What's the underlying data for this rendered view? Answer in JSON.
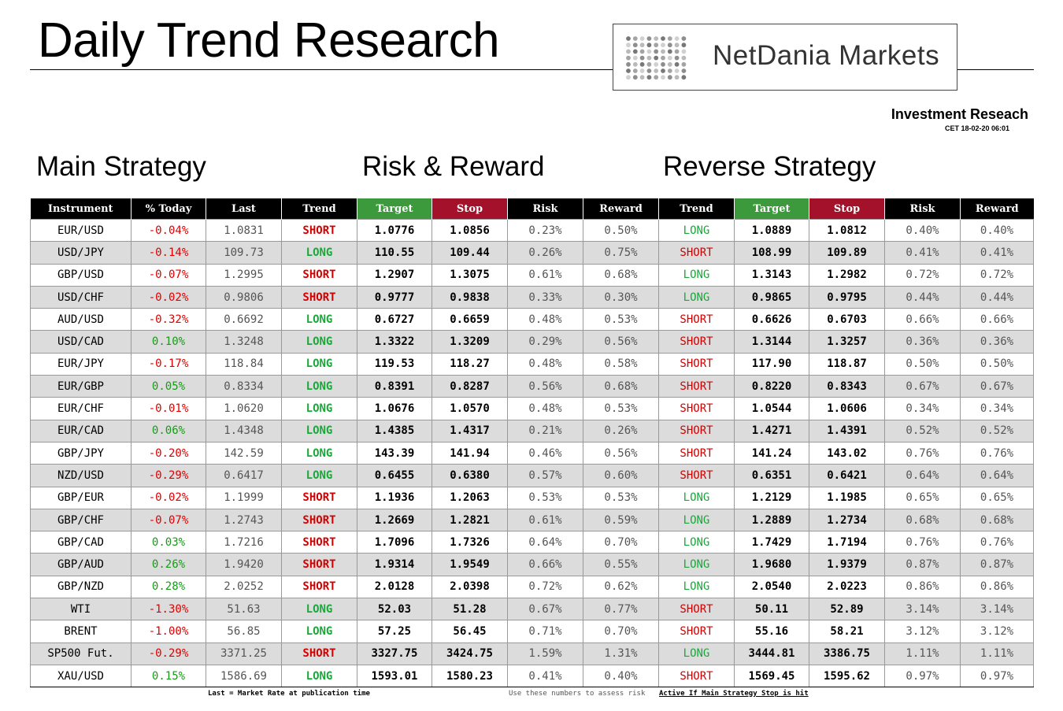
{
  "header": {
    "title": "Daily Trend Research",
    "logo_text": "NetDania Markets",
    "subtitle": "Investment Reseach",
    "timestamp": "CET  18-02-20 06:01"
  },
  "sections": {
    "main": "Main Strategy",
    "risk": "Risk & Reward",
    "reverse": "Reverse Strategy"
  },
  "columns": [
    "Instrument",
    "% Today",
    "Last",
    "Trend",
    "Target",
    "Stop",
    "Risk",
    "Reward",
    "Trend",
    "Target",
    "Stop",
    "Risk",
    "Reward"
  ],
  "colors": {
    "header_bg": "#000000",
    "target_bg": "#3c9a3c",
    "stop_bg": "#a3122a",
    "long": "#1aa83a",
    "short": "#d40000",
    "alt_row": "#dcdcdc"
  },
  "rows": [
    [
      "EUR/USD",
      "-0.04%",
      "1.0831",
      "SHORT",
      "1.0776",
      "1.0856",
      "0.23%",
      "0.50%",
      "LONG",
      "1.0889",
      "1.0812",
      "0.40%",
      "0.40%"
    ],
    [
      "USD/JPY",
      "-0.14%",
      "109.73",
      "LONG",
      "110.55",
      "109.44",
      "0.26%",
      "0.75%",
      "SHORT",
      "108.99",
      "109.89",
      "0.41%",
      "0.41%"
    ],
    [
      "GBP/USD",
      "-0.07%",
      "1.2995",
      "SHORT",
      "1.2907",
      "1.3075",
      "0.61%",
      "0.68%",
      "LONG",
      "1.3143",
      "1.2982",
      "0.72%",
      "0.72%"
    ],
    [
      "USD/CHF",
      "-0.02%",
      "0.9806",
      "SHORT",
      "0.9777",
      "0.9838",
      "0.33%",
      "0.30%",
      "LONG",
      "0.9865",
      "0.9795",
      "0.44%",
      "0.44%"
    ],
    [
      "AUD/USD",
      "-0.32%",
      "0.6692",
      "LONG",
      "0.6727",
      "0.6659",
      "0.48%",
      "0.53%",
      "SHORT",
      "0.6626",
      "0.6703",
      "0.66%",
      "0.66%"
    ],
    [
      "USD/CAD",
      "0.10%",
      "1.3248",
      "LONG",
      "1.3322",
      "1.3209",
      "0.29%",
      "0.56%",
      "SHORT",
      "1.3144",
      "1.3257",
      "0.36%",
      "0.36%"
    ],
    [
      "EUR/JPY",
      "-0.17%",
      "118.84",
      "LONG",
      "119.53",
      "118.27",
      "0.48%",
      "0.58%",
      "SHORT",
      "117.90",
      "118.87",
      "0.50%",
      "0.50%"
    ],
    [
      "EUR/GBP",
      "0.05%",
      "0.8334",
      "LONG",
      "0.8391",
      "0.8287",
      "0.56%",
      "0.68%",
      "SHORT",
      "0.8220",
      "0.8343",
      "0.67%",
      "0.67%"
    ],
    [
      "EUR/CHF",
      "-0.01%",
      "1.0620",
      "LONG",
      "1.0676",
      "1.0570",
      "0.48%",
      "0.53%",
      "SHORT",
      "1.0544",
      "1.0606",
      "0.34%",
      "0.34%"
    ],
    [
      "EUR/CAD",
      "0.06%",
      "1.4348",
      "LONG",
      "1.4385",
      "1.4317",
      "0.21%",
      "0.26%",
      "SHORT",
      "1.4271",
      "1.4391",
      "0.52%",
      "0.52%"
    ],
    [
      "GBP/JPY",
      "-0.20%",
      "142.59",
      "LONG",
      "143.39",
      "141.94",
      "0.46%",
      "0.56%",
      "SHORT",
      "141.24",
      "143.02",
      "0.76%",
      "0.76%"
    ],
    [
      "NZD/USD",
      "-0.29%",
      "0.6417",
      "LONG",
      "0.6455",
      "0.6380",
      "0.57%",
      "0.60%",
      "SHORT",
      "0.6351",
      "0.6421",
      "0.64%",
      "0.64%"
    ],
    [
      "GBP/EUR",
      "-0.02%",
      "1.1999",
      "SHORT",
      "1.1936",
      "1.2063",
      "0.53%",
      "0.53%",
      "LONG",
      "1.2129",
      "1.1985",
      "0.65%",
      "0.65%"
    ],
    [
      "GBP/CHF",
      "-0.07%",
      "1.2743",
      "SHORT",
      "1.2669",
      "1.2821",
      "0.61%",
      "0.59%",
      "LONG",
      "1.2889",
      "1.2734",
      "0.68%",
      "0.68%"
    ],
    [
      "GBP/CAD",
      "0.03%",
      "1.7216",
      "SHORT",
      "1.7096",
      "1.7326",
      "0.64%",
      "0.70%",
      "LONG",
      "1.7429",
      "1.7194",
      "0.76%",
      "0.76%"
    ],
    [
      "GBP/AUD",
      "0.26%",
      "1.9420",
      "SHORT",
      "1.9314",
      "1.9549",
      "0.66%",
      "0.55%",
      "LONG",
      "1.9680",
      "1.9379",
      "0.87%",
      "0.87%"
    ],
    [
      "GBP/NZD",
      "0.28%",
      "2.0252",
      "SHORT",
      "2.0128",
      "2.0398",
      "0.72%",
      "0.62%",
      "LONG",
      "2.0540",
      "2.0223",
      "0.86%",
      "0.86%"
    ],
    [
      "WTI",
      "-1.30%",
      "51.63",
      "LONG",
      "52.03",
      "51.28",
      "0.67%",
      "0.77%",
      "SHORT",
      "50.11",
      "52.89",
      "3.14%",
      "3.14%"
    ],
    [
      "BRENT",
      "-1.00%",
      "56.85",
      "LONG",
      "57.25",
      "56.45",
      "0.71%",
      "0.70%",
      "SHORT",
      "55.16",
      "58.21",
      "3.12%",
      "3.12%"
    ],
    [
      "SP500 Fut.",
      "-0.29%",
      "3371.25",
      "SHORT",
      "3327.75",
      "3424.75",
      "1.59%",
      "1.31%",
      "LONG",
      "3444.81",
      "3386.75",
      "1.11%",
      "1.11%"
    ],
    [
      "XAU/USD",
      "0.15%",
      "1586.69",
      "LONG",
      "1593.01",
      "1580.23",
      "0.41%",
      "0.40%",
      "SHORT",
      "1569.45",
      "1595.62",
      "0.97%",
      "0.97%"
    ]
  ],
  "footnotes": {
    "last": "Last = Market Rate at publication time",
    "assess": "Use these numbers to assess risk",
    "active": "Active If Main Strategy Stop is hit"
  }
}
